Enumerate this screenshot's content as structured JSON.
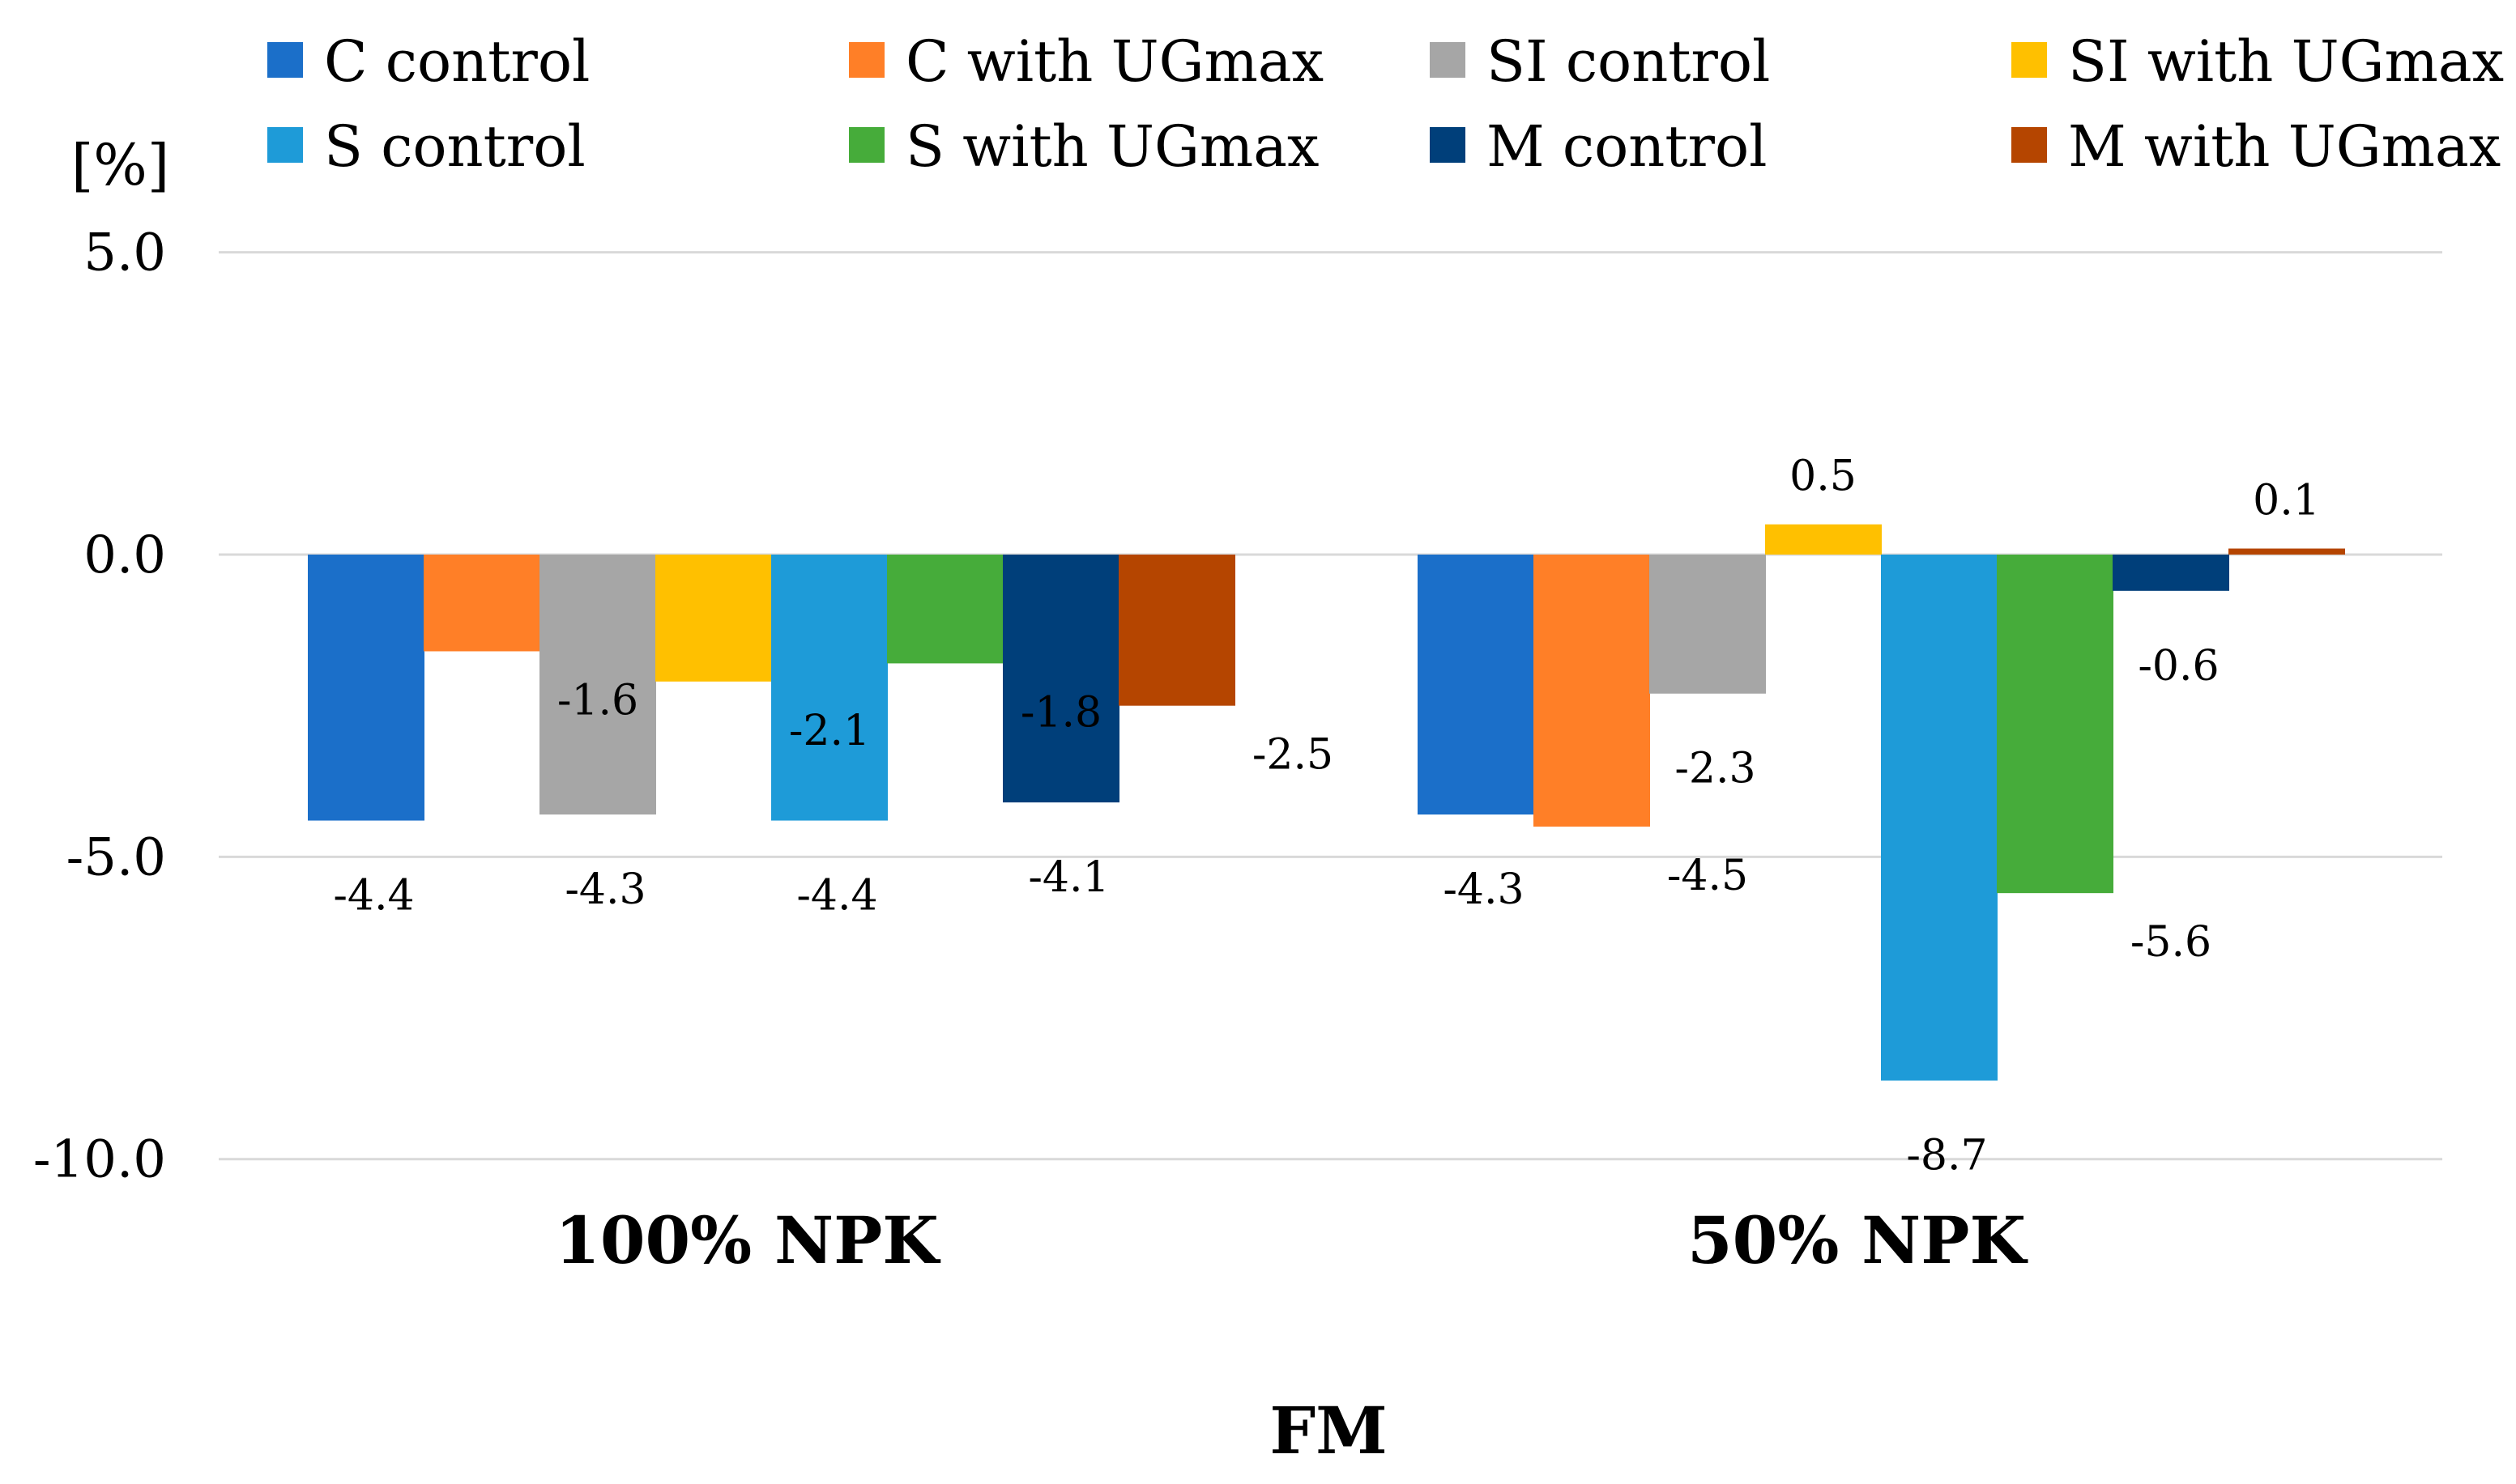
{
  "chart_data": {
    "type": "bar",
    "title": "",
    "xlabel": "FM",
    "ylabel": "[%]",
    "ylim": [
      -10,
      5
    ],
    "yticks": [
      5,
      0,
      -5,
      -10
    ],
    "ytick_labels": [
      "5.0",
      "0.0",
      "-5.0",
      "-10.0"
    ],
    "grid": true,
    "legend_position": "top",
    "categories": [
      "100% NPK",
      "50% NPK"
    ],
    "series": [
      {
        "name": "C control",
        "color": "#1b6fc9",
        "values": [
          -4.4,
          -4.3
        ],
        "labels": [
          "-4.4",
          "-4.3"
        ]
      },
      {
        "name": "C with UGmax",
        "color": "#ff7f27",
        "values": [
          -1.6,
          -4.5
        ],
        "labels": [
          "-1.6",
          "-4.5"
        ]
      },
      {
        "name": "SI control",
        "color": "#a6a6a6",
        "values": [
          -4.3,
          -2.3
        ],
        "labels": [
          "-4.3",
          "-2.3"
        ]
      },
      {
        "name": "SI with UGmax",
        "color": "#ffc000",
        "values": [
          -2.1,
          0.5
        ],
        "labels": [
          "-2.1",
          "0.5"
        ]
      },
      {
        "name": "S control",
        "color": "#1e9bd8",
        "values": [
          -4.4,
          -8.7
        ],
        "labels": [
          "-4.4",
          "-8.7"
        ]
      },
      {
        "name": "S with UGmax",
        "color": "#46ac3a",
        "values": [
          -1.8,
          -5.6
        ],
        "labels": [
          "-1.8",
          "-5.6"
        ]
      },
      {
        "name": "M control",
        "color": "#003f7a",
        "values": [
          -4.1,
          -0.6
        ],
        "labels": [
          "-4.1",
          "-0.6"
        ]
      },
      {
        "name": "M with UGmax",
        "color": "#b54500",
        "values": [
          -2.5,
          0.1
        ],
        "labels": [
          "-2.5",
          "0.1"
        ]
      }
    ]
  }
}
